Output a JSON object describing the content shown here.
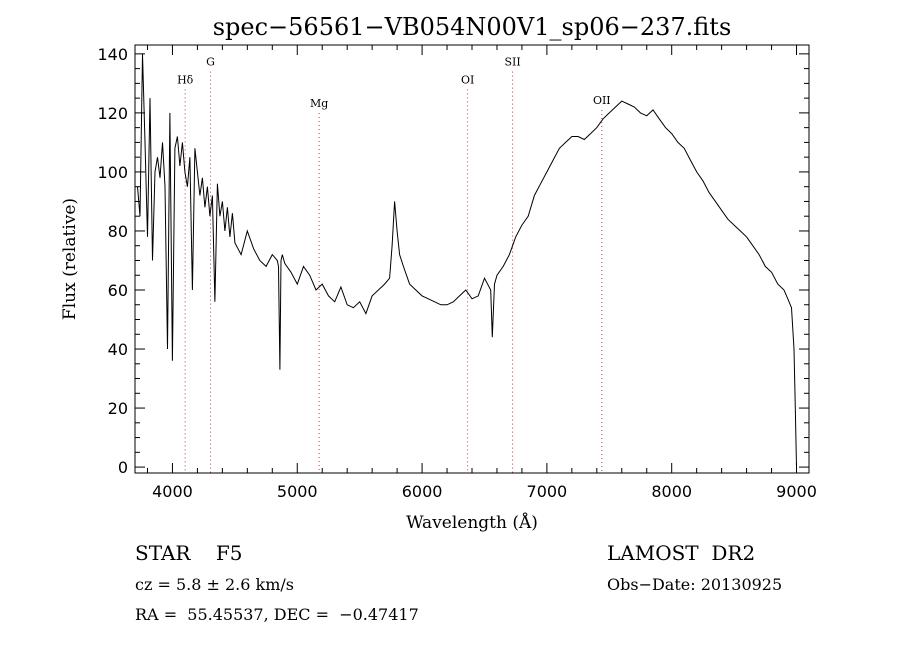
{
  "chart_data": {
    "type": "line",
    "title": "spec−56561−VB054N00V1_sp06−237.fits",
    "xlabel": "Wavelength (Å)",
    "ylabel": "Flux (relative)",
    "xlim": [
      3700,
      9100
    ],
    "ylim": [
      -2,
      143
    ],
    "x_ticks": [
      4000,
      5000,
      6000,
      7000,
      8000,
      9000
    ],
    "y_ticks": [
      0,
      20,
      40,
      60,
      80,
      100,
      120,
      140
    ],
    "grid": false,
    "line_color": "#000000",
    "marker_color": "#c0392b",
    "spectral_lines": [
      {
        "label": "Hδ",
        "wavelength": 4102,
        "label_flux": 130
      },
      {
        "label": "G",
        "wavelength": 4305,
        "label_flux": 136
      },
      {
        "label": "Mg",
        "wavelength": 5175,
        "label_flux": 122
      },
      {
        "label": "OI",
        "wavelength": 6365,
        "label_flux": 130
      },
      {
        "label": "SII",
        "wavelength": 6725,
        "label_flux": 136
      },
      {
        "label": "OII",
        "wavelength": 7440,
        "label_flux": 123
      }
    ],
    "series": [
      {
        "x": [
          3720,
          3740,
          3760,
          3780,
          3800,
          3820,
          3840,
          3860,
          3880,
          3900,
          3920,
          3940,
          3960,
          3980,
          4000,
          4020,
          4040,
          4060,
          4080,
          4100,
          4120,
          4140,
          4160,
          4180,
          4200,
          4220,
          4240,
          4260,
          4280,
          4300,
          4320,
          4340,
          4360,
          4380,
          4400,
          4420,
          4440,
          4460,
          4480,
          4500,
          4550,
          4600,
          4650,
          4700,
          4750,
          4800,
          4840,
          4850,
          4861,
          4870,
          4880,
          4900,
          4950,
          5000,
          5050,
          5100,
          5150,
          5200,
          5250,
          5300,
          5350,
          5400,
          5450,
          5500,
          5550,
          5600,
          5650,
          5700,
          5740,
          5760,
          5780,
          5800,
          5820,
          5850,
          5900,
          5950,
          6000,
          6050,
          6100,
          6150,
          6200,
          6250,
          6300,
          6350,
          6400,
          6450,
          6500,
          6550,
          6563,
          6580,
          6600,
          6650,
          6700,
          6750,
          6800,
          6850,
          6900,
          6950,
          7000,
          7050,
          7100,
          7150,
          7200,
          7250,
          7300,
          7350,
          7400,
          7450,
          7500,
          7550,
          7600,
          7650,
          7700,
          7750,
          7800,
          7850,
          7900,
          7950,
          8000,
          8050,
          8100,
          8150,
          8200,
          8250,
          8300,
          8350,
          8400,
          8450,
          8500,
          8550,
          8600,
          8650,
          8700,
          8750,
          8800,
          8850,
          8900,
          8930,
          8960,
          8980,
          8990,
          9000
        ],
        "y": [
          95,
          85,
          140,
          110,
          78,
          125,
          70,
          100,
          105,
          98,
          110,
          95,
          40,
          120,
          36,
          108,
          112,
          102,
          110,
          100,
          95,
          105,
          60,
          108,
          100,
          92,
          98,
          88,
          95,
          85,
          92,
          56,
          96,
          85,
          90,
          80,
          88,
          78,
          86,
          76,
          72,
          80,
          74,
          70,
          68,
          72,
          70,
          68,
          33,
          70,
          72,
          69,
          66,
          62,
          68,
          65,
          60,
          62,
          58,
          56,
          61,
          55,
          54,
          56,
          52,
          58,
          60,
          62,
          64,
          75,
          90,
          80,
          72,
          68,
          62,
          60,
          58,
          57,
          56,
          55,
          55,
          56,
          58,
          60,
          57,
          58,
          64,
          60,
          44,
          62,
          65,
          68,
          72,
          78,
          82,
          85,
          92,
          96,
          100,
          104,
          108,
          110,
          112,
          112,
          111,
          113,
          115,
          118,
          120,
          122,
          124,
          123,
          122,
          120,
          119,
          121,
          118,
          115,
          113,
          110,
          108,
          104,
          100,
          97,
          93,
          90,
          87,
          84,
          82,
          80,
          78,
          75,
          72,
          68,
          66,
          62,
          60,
          57,
          54,
          40,
          20,
          0
        ]
      }
    ]
  },
  "info": {
    "class_line": "STAR    F5",
    "survey": "LAMOST  DR2",
    "cz": "cz = 5.8 ± 2.6 km/s",
    "obs_date": "Obs−Date: 20130925",
    "coords": "RA =  55.45537, DEC =  −0.47417"
  }
}
